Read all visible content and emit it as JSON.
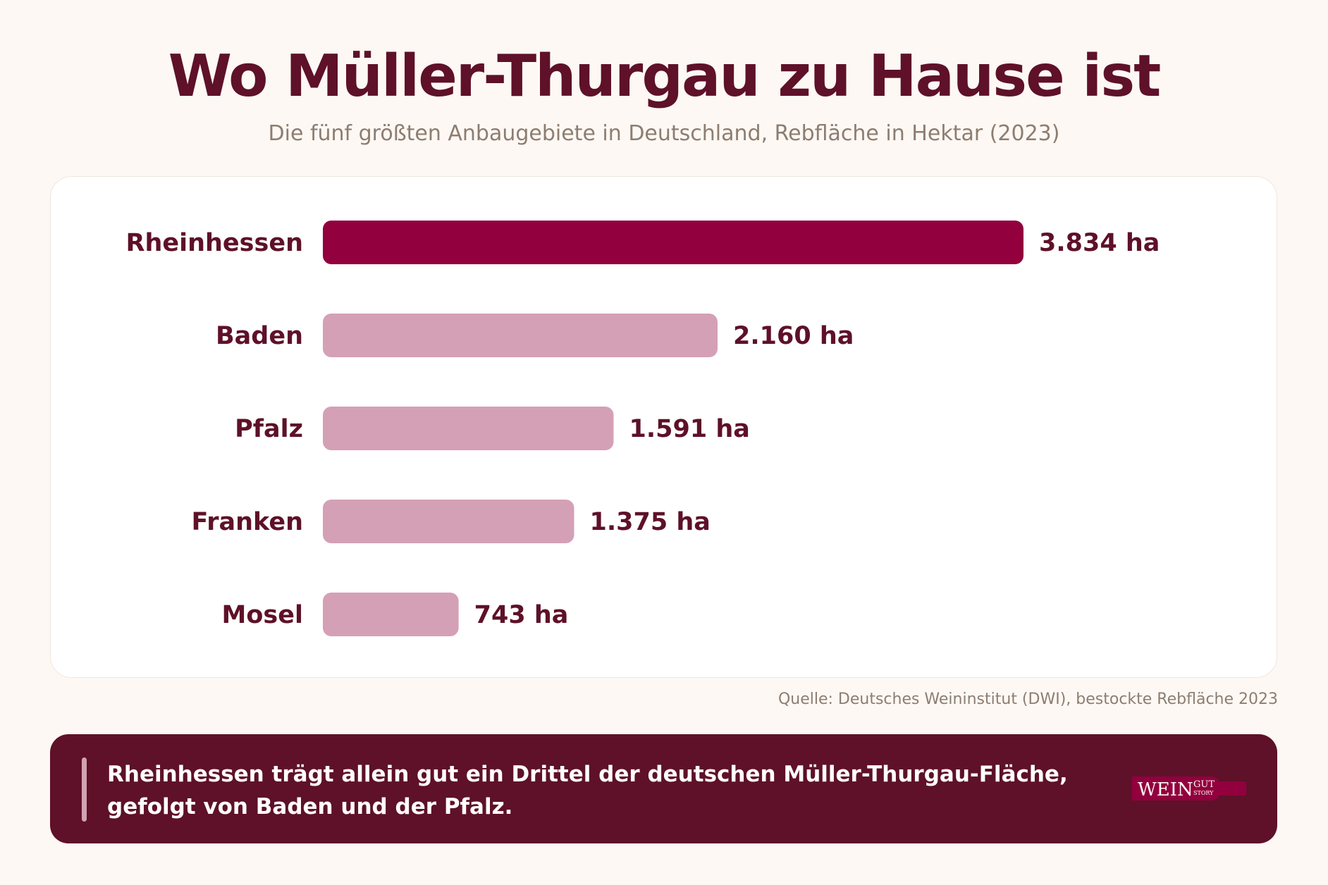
{
  "title": "Wo Müller-Thurgau zu Hause ist",
  "subtitle": "Die fünf größten Anbaugebiete in Deutschland, Rebfläche in Hektar (2023)",
  "source": "Quelle: Deutsches Weininstitut (DWI), bestockte Rebfläche 2023",
  "banner": {
    "text": "Rheinhessen trägt allein gut ein Drittel der deutschen Müller-Thurgau-Fläche, gefolgt von Baden und der Pfalz.",
    "logo": {
      "main": "WEIN",
      "top": "GUT",
      "bottom": "STORY"
    }
  },
  "colors": {
    "highlight": "#92003e",
    "bar": "#d4a0b6",
    "label": "#5e1129",
    "highlight_label": "#92003e"
  },
  "chart_data": {
    "type": "bar",
    "orientation": "horizontal",
    "title": "Wo Müller-Thurgau zu Hause ist",
    "subtitle": "Die fünf größten Anbaugebiete in Deutschland, Rebfläche in Hektar (2023)",
    "categories": [
      "Rheinhessen",
      "Baden",
      "Pfalz",
      "Franken",
      "Mosel"
    ],
    "values": [
      3834,
      2160,
      1591,
      1375,
      743
    ],
    "value_labels": [
      "3.834 ha",
      "2.160 ha",
      "1.591 ha",
      "1.375 ha",
      "743 ha"
    ],
    "unit": "ha",
    "highlighted": "Rheinhessen",
    "xlim": [
      0,
      3834
    ],
    "grid": false,
    "legend": "none"
  }
}
